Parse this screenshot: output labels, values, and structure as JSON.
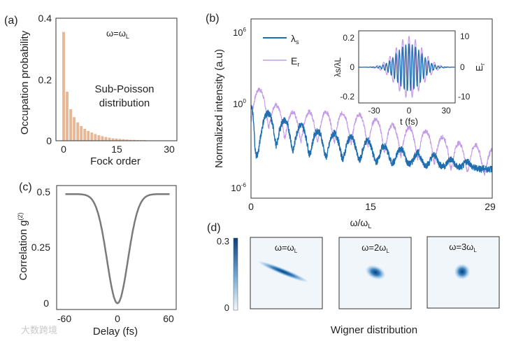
{
  "chart_data": [
    {
      "panel": "(a)",
      "type": "bar",
      "annotation": "ω=ω",
      "annotation_sub": "L",
      "note_line1": "Sub-Poisson",
      "note_line2": "distribution",
      "xlabel": "Fock order",
      "ylabel": "Occupation probability",
      "ylim": [
        0,
        0.4
      ],
      "xlim": [
        -2,
        32
      ],
      "yticks": [
        "0",
        "0.2",
        "0.4"
      ],
      "xticks": [
        "0",
        "15",
        "30"
      ],
      "x": [
        0,
        1,
        2,
        3,
        4,
        5,
        6,
        7,
        8,
        9,
        10,
        11,
        12,
        13,
        14,
        15,
        16,
        17,
        18,
        19,
        20,
        21,
        22,
        23,
        24,
        25,
        26,
        27
      ],
      "values": [
        0.355,
        0.16,
        0.103,
        0.077,
        0.06,
        0.048,
        0.039,
        0.032,
        0.027,
        0.022,
        0.018,
        0.015,
        0.012,
        0.01,
        0.008,
        0.007,
        0.006,
        0.005,
        0.004,
        0.003,
        0.003,
        0.002,
        0.002,
        0.002,
        0.001,
        0.001,
        0.001,
        0.001
      ],
      "color": "#e8b896"
    },
    {
      "panel": "(b)",
      "type": "line",
      "xlabel": "ω/ω",
      "xlabel_sub": "L",
      "ylabel": "Normalized intensity (a.u)",
      "yscale": "log",
      "ylim_log10": [
        -7,
        7
      ],
      "xlim": [
        0,
        29
      ],
      "xticks": [
        "0",
        "15",
        "29"
      ],
      "yticks": [
        "10",
        "10",
        "10"
      ],
      "ytick_exp": [
        "6",
        "0",
        "-6"
      ],
      "series": [
        {
          "name": "λ",
          "name_sub": "s",
          "color": "#1f6fb0",
          "floor_log10": [
            -4.3,
            -5.5
          ],
          "peaks_x": [
            0,
            2,
            4,
            6,
            8,
            10,
            12,
            14,
            16,
            18,
            20,
            22,
            24,
            26
          ],
          "peaks_log10": [
            -0.2,
            -0.8,
            -1.4,
            -1.8,
            -2.3,
            -2.5,
            -2.8,
            -3.1,
            -3.6,
            -3.8,
            -4.2,
            -4.4,
            -4.8,
            -5.0
          ]
        },
        {
          "name": "E",
          "name_sub": "r",
          "color": "#c39be8",
          "floor_log10": [
            -5.0,
            -6.2
          ],
          "peaks_x": [
            1,
            3,
            5,
            7,
            9,
            11,
            13,
            15,
            17,
            19,
            21,
            23,
            25,
            27,
            29
          ],
          "peaks_log10": [
            1.2,
            -0.1,
            -0.7,
            -0.7,
            -0.7,
            -0.8,
            -0.9,
            -1.3,
            -1.8,
            -2.0,
            -2.3,
            -2.8,
            -3.3,
            -3.5,
            -3.9
          ]
        }
      ],
      "inset": {
        "type": "line",
        "xlabel": "t (fs)",
        "ylabel_left": "λs/λL",
        "ylabel_right": "E",
        "ylabel_right_sub": "r",
        "xlim": [
          -42,
          38
        ],
        "ylim_left": [
          -0.24,
          0.24
        ],
        "ylim_right": [
          -12,
          12
        ],
        "xticks": [
          "-30",
          "0",
          "30"
        ],
        "yticks_left": [
          "-0.2",
          "0",
          "0.2"
        ],
        "yticks_right": [
          "-10",
          "0",
          "10"
        ],
        "lambda": {
          "amplitude": 0.16,
          "width_fs": 10,
          "period_fs": 2.7
        },
        "field": {
          "amplitude": 10.5,
          "width_fs": 11,
          "period_fs": 5.3
        }
      }
    },
    {
      "panel": "(c)",
      "type": "line",
      "xlabel": "Delay (fs)",
      "ylabel": "Correlation g",
      "ylabel_sup": "(2)",
      "xlim": [
        -65,
        65
      ],
      "ylim": [
        0,
        0.5
      ],
      "xticks": [
        "-60",
        "0",
        "60"
      ],
      "yticks": [
        "0",
        "0.25",
        "0.5"
      ],
      "plateau": 0.49,
      "width_fs": 12,
      "x_range": [
        -60,
        60
      ],
      "color": "#7a7a7a"
    },
    {
      "panel": "(d)",
      "type": "heatmap",
      "title": "Wigner distribution",
      "colorbar_ticks": [
        "0",
        "0.3"
      ],
      "colorbar_range": [
        0,
        0.3
      ],
      "maps": [
        {
          "label": "ω=ω",
          "sub": "L",
          "prefix": ""
        },
        {
          "label": "ω=2ω",
          "sub": "L"
        },
        {
          "label": "ω=3ω",
          "sub": "L"
        }
      ]
    }
  ],
  "watermark": "大数跨境"
}
